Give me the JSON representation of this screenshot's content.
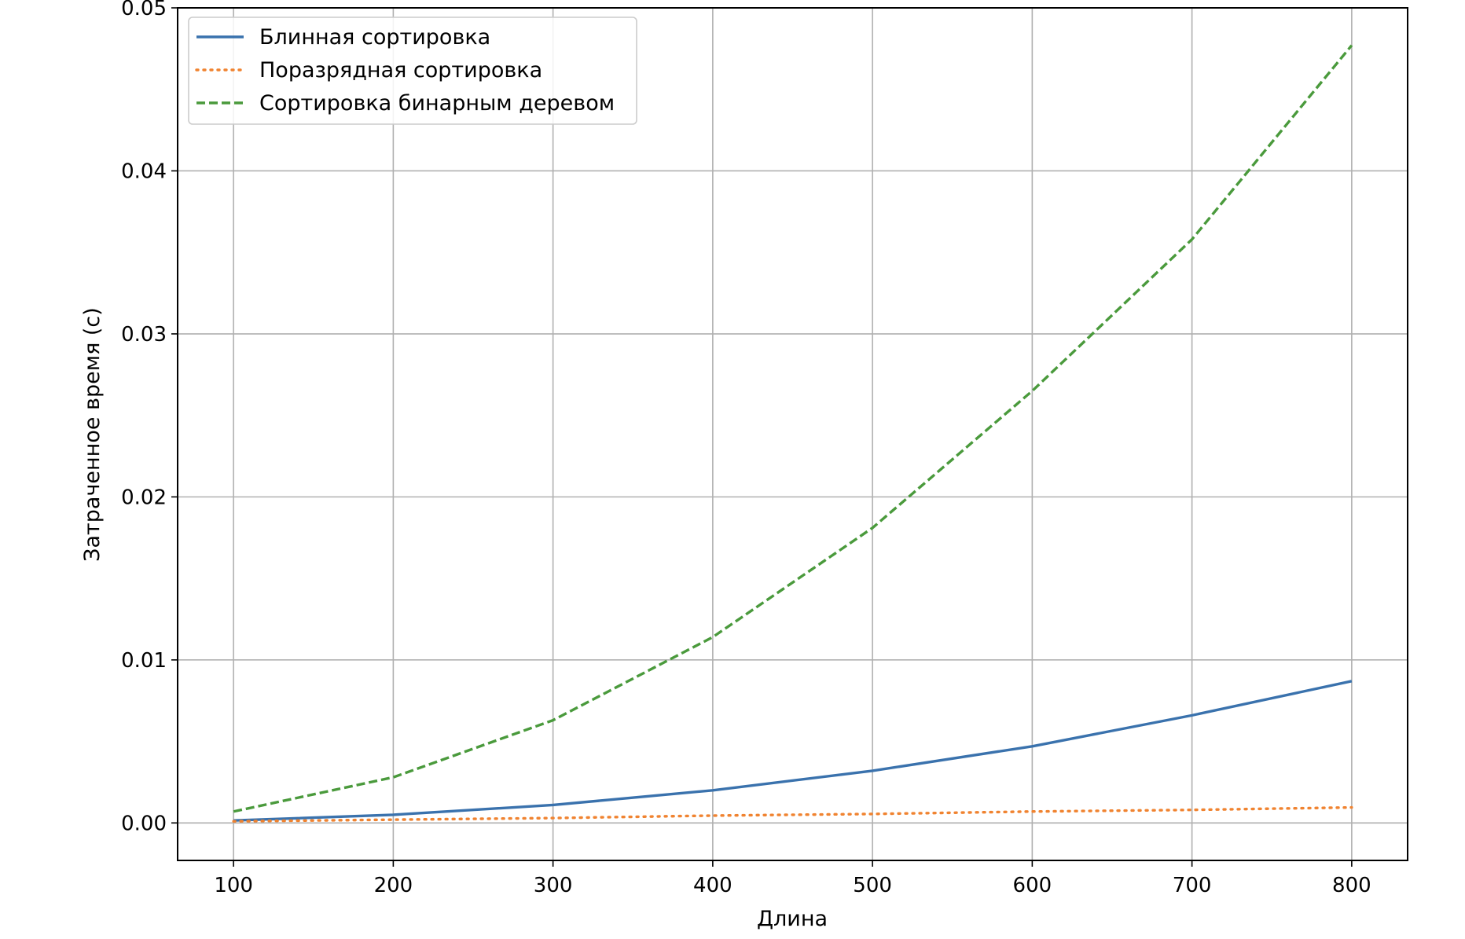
{
  "chart_data": {
    "type": "line",
    "title": "",
    "xlabel": "Длина",
    "ylabel": "Затраченное время (с)",
    "x": [
      100,
      200,
      300,
      400,
      500,
      600,
      700,
      800
    ],
    "xlim": [
      65,
      835
    ],
    "ylim": [
      -0.0023,
      0.05
    ],
    "xticks": [
      100,
      200,
      300,
      400,
      500,
      600,
      700,
      800
    ],
    "yticks": [
      0.0,
      0.01,
      0.02,
      0.03,
      0.04,
      0.05
    ],
    "xtick_labels": [
      "100",
      "200",
      "300",
      "400",
      "500",
      "600",
      "700",
      "800"
    ],
    "ytick_labels": [
      "0.00",
      "0.01",
      "0.02",
      "0.03",
      "0.04",
      "0.05"
    ],
    "grid": true,
    "legend_position": "top-left",
    "series": [
      {
        "name": "Блинная сортировка",
        "style": "solid",
        "color": "#3a72ad",
        "values": [
          0.00015,
          0.0005,
          0.0011,
          0.002,
          0.0032,
          0.0047,
          0.0066,
          0.0087
        ]
      },
      {
        "name": "Поразрядная сортировка",
        "style": "dotted",
        "color": "#f08330",
        "values": [
          0.0001,
          0.0002,
          0.0003,
          0.00045,
          0.00055,
          0.0007,
          0.0008,
          0.00095
        ]
      },
      {
        "name": "Сортировка бинарным деревом",
        "style": "dashed",
        "color": "#4a9a3c",
        "values": [
          0.0007,
          0.0028,
          0.0063,
          0.0114,
          0.0181,
          0.0265,
          0.0358,
          0.0477
        ]
      }
    ]
  }
}
